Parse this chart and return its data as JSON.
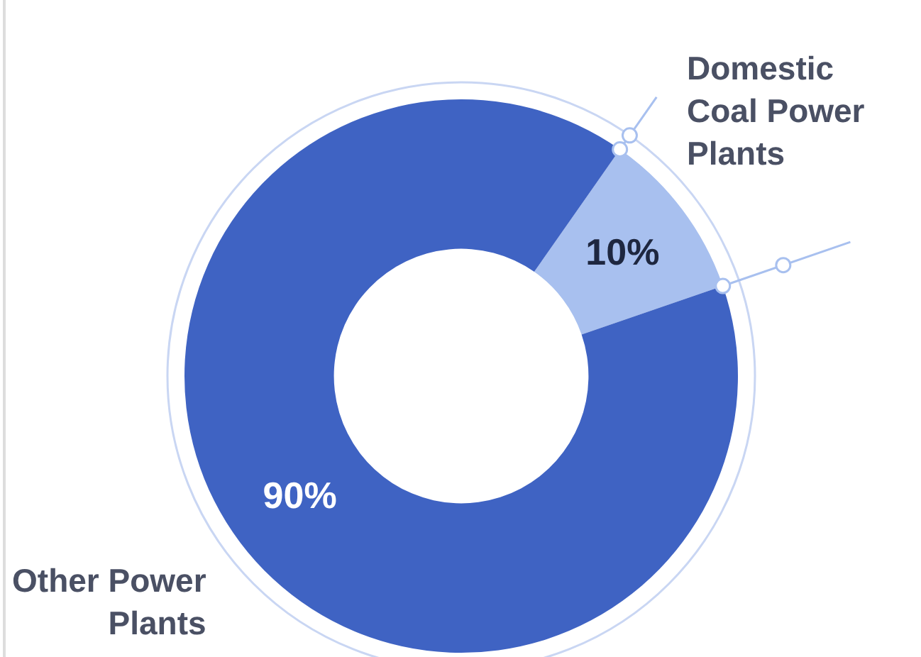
{
  "chart_data": {
    "type": "donut",
    "categories": [
      "Domestic Coal Power Plants",
      "Other Power Plants"
    ],
    "values": [
      10,
      90
    ],
    "colors": [
      "#a8c0ef",
      "#3f63c3"
    ],
    "value_labels": [
      "10%",
      "90%"
    ],
    "legend": false
  }
}
